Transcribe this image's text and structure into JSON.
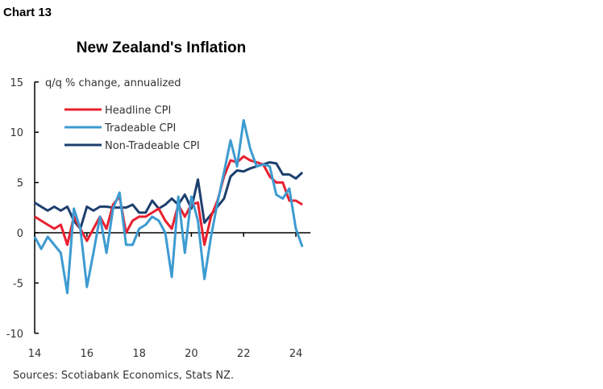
{
  "chart_label": "Chart 13",
  "chart_data": {
    "type": "line",
    "title": "New Zealand's Inflation",
    "ylabel": "q/q % change, annualized",
    "xlabel": "",
    "ylim": [
      -10,
      15
    ],
    "yticks": [
      -10,
      -5,
      0,
      5,
      10,
      15
    ],
    "xlim": [
      2014,
      2024.5
    ],
    "xticks": [
      {
        "value": 2014,
        "label": "14"
      },
      {
        "value": 2016,
        "label": "16"
      },
      {
        "value": 2018,
        "label": "18"
      },
      {
        "value": 2020,
        "label": "20"
      },
      {
        "value": 2022,
        "label": "22"
      },
      {
        "value": 2024,
        "label": "24"
      }
    ],
    "x_start": 2014.0,
    "x_step": 0.25,
    "legend_position": "top-left",
    "series": [
      {
        "name": "Headline CPI",
        "color": "#e8202f",
        "values": [
          1.6,
          1.2,
          0.8,
          0.4,
          0.8,
          -1.2,
          1.6,
          0.4,
          -0.8,
          0.4,
          1.6,
          0.4,
          2.8,
          3.6,
          0,
          1.2,
          1.6,
          1.6,
          2.0,
          2.4,
          1.2,
          0.4,
          2.8,
          1.6,
          2.8,
          3.0,
          -1.2,
          1.6,
          3.2,
          5.6,
          7.2,
          7.0,
          7.6,
          7.2,
          7.0,
          6.8,
          5.6,
          5.0,
          5.0,
          3.2,
          3.2,
          2.8
        ]
      },
      {
        "name": "Tradeable CPI",
        "color": "#3d9bd1",
        "values": [
          -0.4,
          -1.6,
          -0.4,
          -1.2,
          -2.0,
          -6.0,
          2.4,
          0.4,
          -5.4,
          -2.0,
          1.6,
          -2.0,
          2.4,
          4.0,
          -1.2,
          -1.2,
          0.4,
          0.8,
          1.6,
          1.2,
          0,
          -4.4,
          3.6,
          -2.0,
          3.6,
          1.2,
          -4.6,
          -0.4,
          3.0,
          6.0,
          9.2,
          6.6,
          11.2,
          8.4,
          6.6,
          6.8,
          6.6,
          3.8,
          3.4,
          4.4,
          0.4,
          -1.4
        ]
      },
      {
        "name": "Non-Tradeable CPI",
        "color": "#1d3f6e",
        "values": [
          3.0,
          2.6,
          2.2,
          2.6,
          2.2,
          2.6,
          1.2,
          0.4,
          2.6,
          2.2,
          2.6,
          2.6,
          2.5,
          2.5,
          2.5,
          2.8,
          2.0,
          2.0,
          3.2,
          2.4,
          2.8,
          3.4,
          2.8,
          3.8,
          2.4,
          5.3,
          1.0,
          1.8,
          2.6,
          3.4,
          5.6,
          6.2,
          6.1,
          6.4,
          6.6,
          6.8,
          7.0,
          6.9,
          5.8,
          5.8,
          5.4,
          6.0
        ]
      }
    ]
  },
  "source": "Sources: Scotiabank Economics, Stats NZ."
}
